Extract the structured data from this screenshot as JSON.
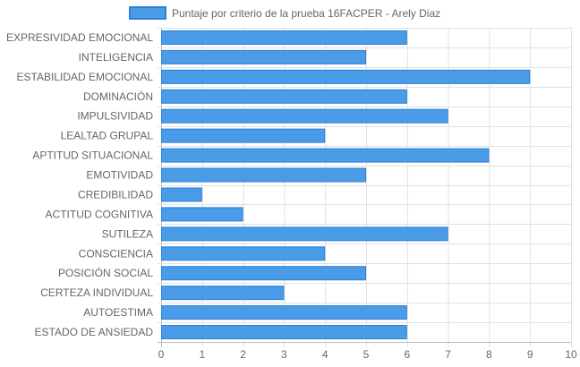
{
  "chart_data": {
    "type": "bar",
    "orientation": "horizontal",
    "categories": [
      "EXPRESIVIDAD EMOCIONAL",
      "INTELIGENCIA",
      "ESTABILIDAD EMOCIONAL",
      "DOMINACIÓN",
      "IMPULSIVIDAD",
      "LEALTAD GRUPAL",
      "APTITUD SITUACIONAL",
      "EMOTIVIDAD",
      "CREDIBILIDAD",
      "ACTITUD COGNITIVA",
      "SUTILEZA",
      "CONSCIENCIA",
      "POSICIÓN SOCIAL",
      "CERTEZA INDIVIDUAL",
      "AUTOESTIMA",
      "ESTADO DE ANSIEDAD"
    ],
    "series": [
      {
        "name": "Puntaje por criterio de la prueba 16FACPER - Arely Diaz",
        "values": [
          6,
          5,
          9,
          6,
          7,
          4,
          8,
          5,
          1,
          2,
          7,
          4,
          5,
          3,
          6,
          6
        ]
      }
    ],
    "xlim": [
      0,
      10
    ],
    "xticks": [
      "0",
      "1",
      "2",
      "3",
      "4",
      "5",
      "6",
      "7",
      "8",
      "9",
      "10"
    ],
    "grid": true,
    "legend_position": "top",
    "colors": {
      "bar_fill": "#4a9be8",
      "bar_stroke": "#2f7fd6",
      "grid": "#e1e1e1",
      "axis": "#bbbbbb"
    }
  }
}
